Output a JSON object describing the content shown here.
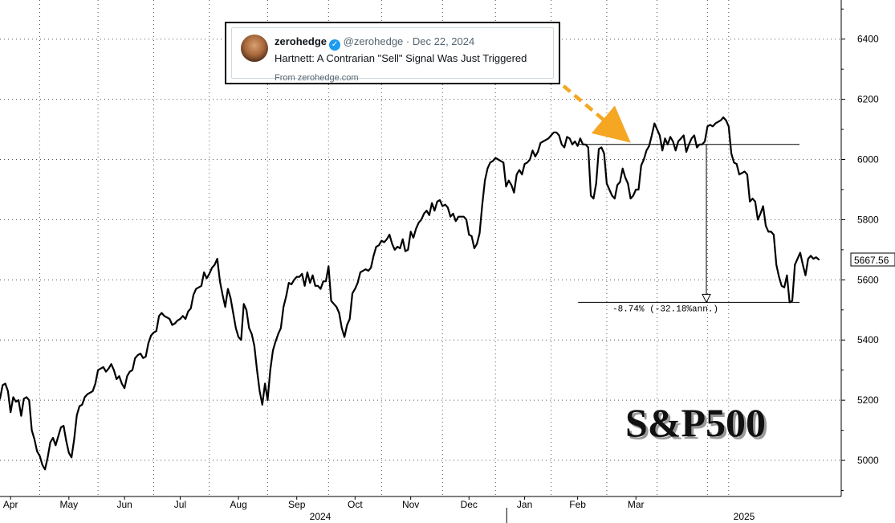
{
  "tweet": {
    "name": "zerohedge",
    "handle": "@zerohedge",
    "separator": "·",
    "date": "Dec 22, 2024",
    "text": "Hartnett: A Contrarian \"Sell\" Signal Was Just Triggered",
    "source": "From zerohedge.com",
    "verified_color": "#1d9bf0"
  },
  "colors": {
    "line": "#000000",
    "arrow": "#F5A623"
  },
  "chart_data": {
    "type": "line",
    "title": "S&P500",
    "series": [
      {
        "values": [
          5205,
          5250,
          5255,
          5230,
          5160,
          5210,
          5195,
          5200,
          5148,
          5205,
          5210,
          5200,
          5100,
          5070,
          5030,
          5015,
          4985,
          4970,
          5010,
          5060,
          5075,
          5050,
          5080,
          5110,
          5115,
          5065,
          5025,
          5010,
          5070,
          5150,
          5180,
          5185,
          5210,
          5220,
          5225,
          5230,
          5255,
          5300,
          5305,
          5310,
          5295,
          5305,
          5320,
          5300,
          5270,
          5280,
          5255,
          5240,
          5280,
          5295,
          5300,
          5340,
          5350,
          5355,
          5340,
          5345,
          5390,
          5415,
          5425,
          5430,
          5480,
          5490,
          5480,
          5475,
          5470,
          5450,
          5455,
          5465,
          5470,
          5480,
          5470,
          5495,
          5505,
          5550,
          5570,
          5575,
          5580,
          5625,
          5605,
          5620,
          5640,
          5650,
          5670,
          5595,
          5550,
          5510,
          5570,
          5540,
          5490,
          5440,
          5410,
          5400,
          5520,
          5500,
          5440,
          5420,
          5380,
          5300,
          5230,
          5185,
          5255,
          5200,
          5300,
          5365,
          5395,
          5420,
          5440,
          5510,
          5545,
          5590,
          5585,
          5600,
          5610,
          5610,
          5620,
          5580,
          5625,
          5590,
          5615,
          5580,
          5580,
          5570,
          5595,
          5595,
          5645,
          5530,
          5520,
          5510,
          5490,
          5440,
          5410,
          5450,
          5470,
          5555,
          5570,
          5590,
          5625,
          5630,
          5635,
          5630,
          5640,
          5680,
          5710,
          5715,
          5730,
          5725,
          5735,
          5750,
          5720,
          5700,
          5710,
          5705,
          5735,
          5695,
          5700,
          5760,
          5740,
          5770,
          5790,
          5800,
          5820,
          5830,
          5815,
          5855,
          5830,
          5860,
          5865,
          5845,
          5850,
          5840,
          5810,
          5820,
          5795,
          5810,
          5810,
          5810,
          5800,
          5750,
          5745,
          5705,
          5720,
          5755,
          5850,
          5930,
          5970,
          5990,
          5995,
          6005,
          6000,
          5995,
          5990,
          5910,
          5930,
          5915,
          5890,
          5950,
          5965,
          5950,
          5985,
          5990,
          6000,
          6030,
          6010,
          6025,
          6055,
          6060,
          6065,
          6070,
          6080,
          6090,
          6090,
          6080,
          6050,
          6040,
          6075,
          6070,
          6050,
          6060,
          6045,
          6070,
          6050,
          6050,
          6040,
          5880,
          5870,
          5920,
          6035,
          6040,
          6020,
          5920,
          5900,
          5880,
          5870,
          5915,
          5925,
          5970,
          5940,
          5920,
          5870,
          5880,
          5900,
          5900,
          5980,
          6000,
          6030,
          6045,
          6080,
          6120,
          6100,
          6080,
          6030,
          6070,
          6050,
          6075,
          6060,
          6030,
          6060,
          6070,
          6080,
          6025,
          6050,
          6070,
          6080,
          6040,
          6050,
          6050,
          6060,
          6110,
          6115,
          6110,
          6120,
          6125,
          6130,
          6140,
          6130,
          6110,
          6020,
          5990,
          5985,
          5950,
          5955,
          5960,
          5950,
          5860,
          5870,
          5860,
          5800,
          5820,
          5845,
          5780,
          5760,
          5760,
          5750,
          5650,
          5610,
          5580,
          5575,
          5615,
          5525,
          5530,
          5650,
          5670,
          5690,
          5650,
          5615,
          5670,
          5680,
          5670,
          5675,
          5667.56
        ]
      }
    ],
    "x_axis": {
      "tick_labels": [
        "Apr",
        "May",
        "Jun",
        "Jul",
        "Aug",
        "Sep",
        "Oct",
        "Nov",
        "Dec",
        "Jan",
        "Feb",
        "Mar"
      ],
      "year_labels": [
        "2024",
        "2025"
      ]
    },
    "y_axis": {
      "ticks": [
        5000,
        5200,
        5400,
        5600,
        5800,
        6000,
        6200,
        6400
      ],
      "range": [
        4880,
        6530
      ],
      "position": "right"
    },
    "last_value_label": "5667.56",
    "reference_level": 6050,
    "drawdown_low": 5525,
    "drawdown_label": "-8.74% (-32.18%ann.)",
    "grid": true
  }
}
